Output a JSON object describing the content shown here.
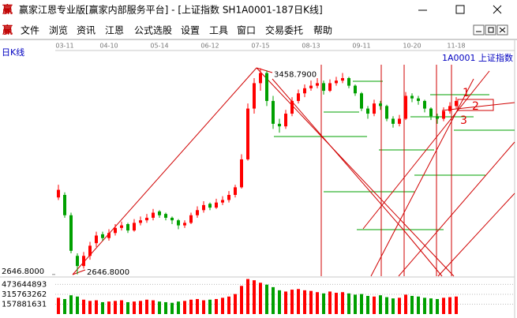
{
  "title_bar": {
    "icon": "赢",
    "title": "赢家江恩专业版[赢家内部服务平台] - [上证指数  SH1A0001-187日K线]"
  },
  "menu_bar": {
    "icon": "赢",
    "items": [
      "文件",
      "浏览",
      "资讯",
      "江恩",
      "公式选股",
      "设置",
      "工具",
      "窗口",
      "交易委托",
      "帮助"
    ]
  },
  "chart_data": {
    "type": "candlestick",
    "period_label": "日K线",
    "symbol_label": "1A0001  上证指数",
    "categories": [
      null,
      "03-11",
      null,
      null,
      null,
      null,
      null,
      null,
      "04-10",
      null,
      null,
      null,
      null,
      null,
      null,
      null,
      "05-14",
      null,
      null,
      null,
      null,
      null,
      null,
      null,
      "06-12",
      null,
      null,
      null,
      null,
      null,
      null,
      null,
      "07-15",
      null,
      null,
      null,
      null,
      null,
      null,
      null,
      "08-13",
      null,
      null,
      null,
      null,
      null,
      null,
      null,
      "09-11",
      null,
      null,
      null,
      null,
      null,
      null,
      null,
      "10-20",
      null,
      null,
      null,
      null,
      null,
      null,
      "11-18"
    ],
    "ohlc": [
      [
        2950,
        3000,
        2940,
        2980
      ],
      [
        2960,
        2970,
        2870,
        2880
      ],
      [
        2880,
        2890,
        2730,
        2740
      ],
      [
        2720,
        2730,
        2646.8,
        2680
      ],
      [
        2680,
        2735,
        2670,
        2720
      ],
      [
        2720,
        2775,
        2705,
        2760
      ],
      [
        2770,
        2815,
        2755,
        2800
      ],
      [
        2805,
        2815,
        2780,
        2790
      ],
      [
        2790,
        2825,
        2780,
        2810
      ],
      [
        2810,
        2845,
        2800,
        2830
      ],
      [
        2830,
        2855,
        2820,
        2840
      ],
      [
        2845,
        2850,
        2810,
        2820
      ],
      [
        2820,
        2865,
        2815,
        2850
      ],
      [
        2850,
        2875,
        2840,
        2860
      ],
      [
        2860,
        2885,
        2850,
        2870
      ],
      [
        2870,
        2905,
        2860,
        2890
      ],
      [
        2895,
        2900,
        2870,
        2880
      ],
      [
        2885,
        2890,
        2860,
        2870
      ],
      [
        2870,
        2875,
        2845,
        2860
      ],
      [
        2860,
        2865,
        2825,
        2840
      ],
      [
        2840,
        2860,
        2830,
        2850
      ],
      [
        2850,
        2890,
        2845,
        2880
      ],
      [
        2880,
        2915,
        2870,
        2900
      ],
      [
        2900,
        2935,
        2890,
        2920
      ],
      [
        2925,
        2930,
        2900,
        2910
      ],
      [
        2910,
        2945,
        2905,
        2930
      ],
      [
        2930,
        2955,
        2920,
        2940
      ],
      [
        2940,
        2975,
        2930,
        2960
      ],
      [
        2960,
        3000,
        2950,
        2990
      ],
      [
        2990,
        3120,
        2985,
        3100
      ],
      [
        3100,
        3320,
        3095,
        3300
      ],
      [
        3300,
        3420,
        3280,
        3400
      ],
      [
        3400,
        3458.79,
        3370,
        3440
      ],
      [
        3440,
        3450,
        3310,
        3330
      ],
      [
        3330,
        3350,
        3220,
        3240
      ],
      [
        3240,
        3260,
        3205,
        3230
      ],
      [
        3230,
        3295,
        3220,
        3280
      ],
      [
        3280,
        3345,
        3270,
        3330
      ],
      [
        3330,
        3375,
        3320,
        3360
      ],
      [
        3360,
        3395,
        3345,
        3380
      ],
      [
        3380,
        3410,
        3370,
        3390
      ],
      [
        3390,
        3420,
        3380,
        3400
      ],
      [
        3400,
        3410,
        3355,
        3370
      ],
      [
        3370,
        3415,
        3365,
        3400
      ],
      [
        3400,
        3425,
        3390,
        3410
      ],
      [
        3410,
        3440,
        3400,
        3420
      ],
      [
        3420,
        3425,
        3380,
        3390
      ],
      [
        3390,
        3395,
        3350,
        3360
      ],
      [
        3360,
        3365,
        3290,
        3300
      ],
      [
        3300,
        3310,
        3260,
        3280
      ],
      [
        3280,
        3335,
        3270,
        3320
      ],
      [
        3320,
        3330,
        3295,
        3310
      ],
      [
        3310,
        3315,
        3250,
        3260
      ],
      [
        3260,
        3270,
        3225,
        3240
      ],
      [
        3240,
        3275,
        3230,
        3260
      ],
      [
        3260,
        3365,
        3255,
        3350
      ],
      [
        3350,
        3360,
        3325,
        3340
      ],
      [
        3340,
        3350,
        3315,
        3330
      ],
      [
        3330,
        3335,
        3285,
        3300
      ],
      [
        3300,
        3305,
        3255,
        3270
      ],
      [
        3270,
        3280,
        3240,
        3260
      ],
      [
        3260,
        3305,
        3250,
        3290
      ],
      [
        3290,
        3325,
        3280,
        3310
      ],
      [
        3310,
        3345,
        3300,
        3330
      ]
    ],
    "volumes": [
      260000000,
      240000000,
      300000000,
      280000000,
      230000000,
      210000000,
      220000000,
      190000000,
      200000000,
      210000000,
      220000000,
      190000000,
      200000000,
      210000000,
      230000000,
      220000000,
      200000000,
      190000000,
      180000000,
      200000000,
      210000000,
      230000000,
      240000000,
      220000000,
      230000000,
      240000000,
      260000000,
      280000000,
      320000000,
      450000000,
      560000000,
      540000000,
      500000000,
      470000000,
      430000000,
      380000000,
      360000000,
      390000000,
      400000000,
      380000000,
      370000000,
      350000000,
      330000000,
      360000000,
      340000000,
      350000000,
      330000000,
      310000000,
      320000000,
      290000000,
      280000000,
      300000000,
      270000000,
      250000000,
      260000000,
      310000000,
      290000000,
      280000000,
      260000000,
      250000000,
      240000000,
      260000000,
      270000000,
      280000000
    ],
    "ylim": [
      2640,
      3510
    ],
    "yticks": [
      {
        "value": 2646.8,
        "label": "2646.8000"
      }
    ],
    "y2lim": [
      0,
      580000000
    ],
    "y2ticks": [
      473644893,
      315763262,
      157881631
    ],
    "high_label": {
      "value": 3458.79,
      "label": "3458.7900"
    },
    "low_label": {
      "value": 2646.8,
      "label": "2646.8000"
    },
    "up_color": "#ff0000",
    "down_color": "#00a000",
    "annotations": [
      "1",
      "2",
      "3"
    ]
  }
}
